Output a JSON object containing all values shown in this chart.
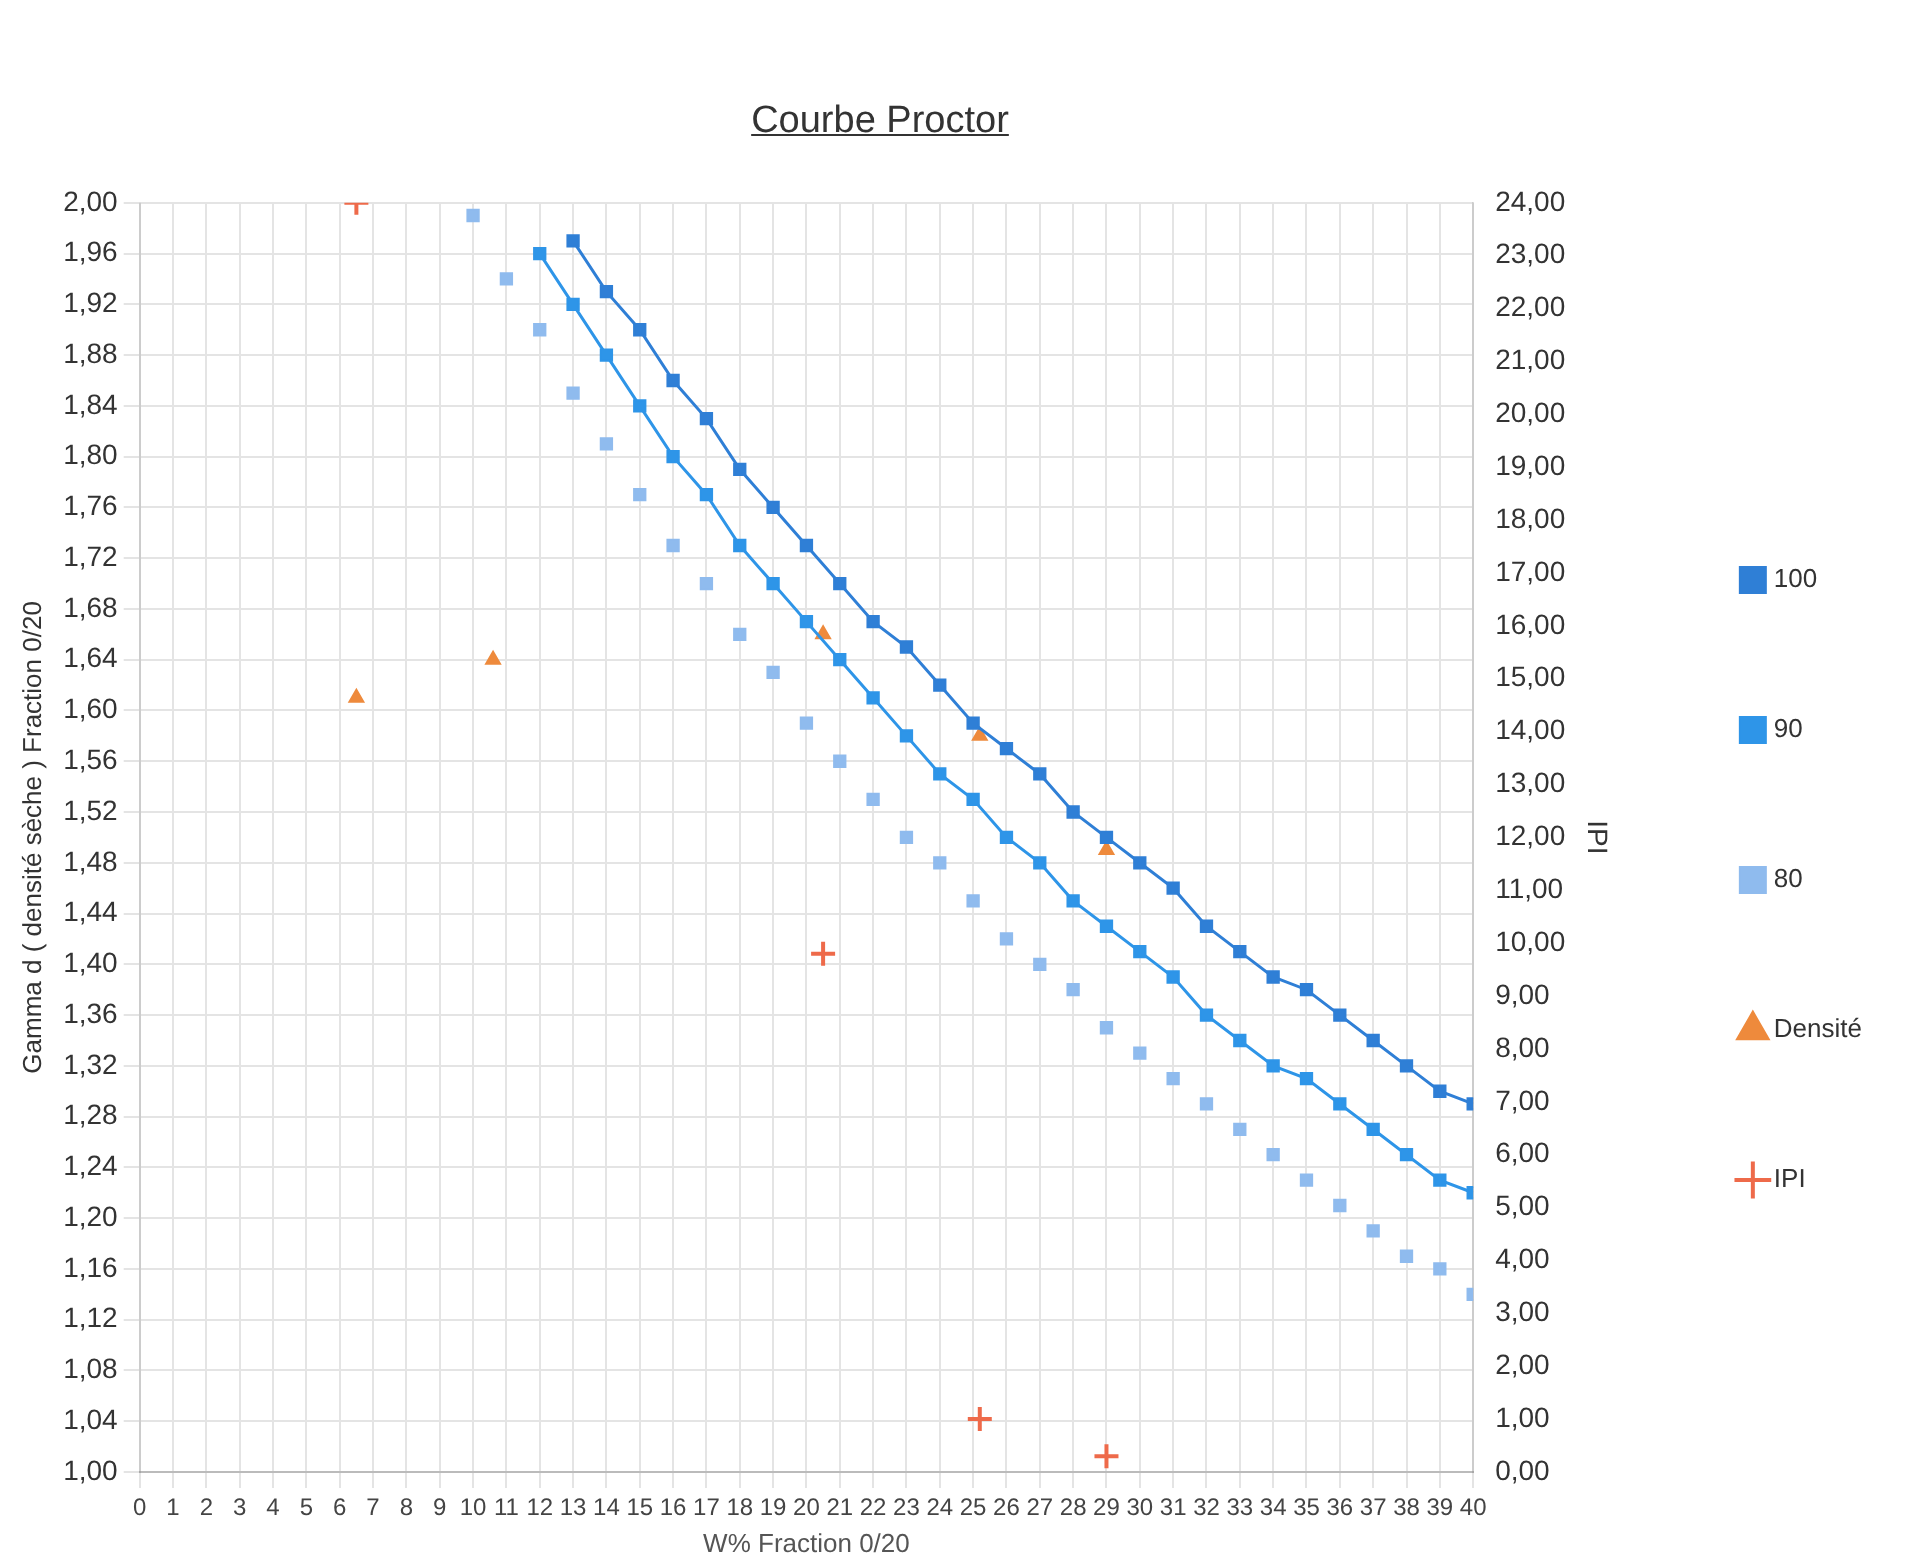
{
  "chart_data": {
    "type": "line",
    "title": "Courbe Proctor",
    "xlabel": "W% Fraction 0/20",
    "ylabel": "Gamma d ( densité sèche ) Fraction 0/20",
    "y2label": "IPI",
    "xlim": [
      0,
      40
    ],
    "xticks": [
      0,
      1,
      2,
      3,
      4,
      5,
      6,
      7,
      8,
      9,
      10,
      11,
      12,
      13,
      14,
      15,
      16,
      17,
      18,
      19,
      20,
      21,
      22,
      23,
      24,
      25,
      26,
      27,
      28,
      29,
      30,
      31,
      32,
      33,
      34,
      35,
      36,
      37,
      38,
      39,
      40
    ],
    "ylim": [
      1,
      2
    ],
    "yticks": [
      {
        "value": 1,
        "label": "1,00"
      },
      {
        "value": 1.04,
        "label": "1,04"
      },
      {
        "value": 1.08,
        "label": "1,08"
      },
      {
        "value": 1.12,
        "label": "1,12"
      },
      {
        "value": 1.16,
        "label": "1,16"
      },
      {
        "value": 1.2,
        "label": "1,20"
      },
      {
        "value": 1.24,
        "label": "1,24"
      },
      {
        "value": 1.28,
        "label": "1,28"
      },
      {
        "value": 1.32,
        "label": "1,32"
      },
      {
        "value": 1.36,
        "label": "1,36"
      },
      {
        "value": 1.4,
        "label": "1,40"
      },
      {
        "value": 1.44,
        "label": "1,44"
      },
      {
        "value": 1.48,
        "label": "1,48"
      },
      {
        "value": 1.52,
        "label": "1,52"
      },
      {
        "value": 1.56,
        "label": "1,56"
      },
      {
        "value": 1.6,
        "label": "1,60"
      },
      {
        "value": 1.64,
        "label": "1,64"
      },
      {
        "value": 1.68,
        "label": "1,68"
      },
      {
        "value": 1.72,
        "label": "1,72"
      },
      {
        "value": 1.76,
        "label": "1,76"
      },
      {
        "value": 1.8,
        "label": "1,80"
      },
      {
        "value": 1.84,
        "label": "1,84"
      },
      {
        "value": 1.88,
        "label": "1,88"
      },
      {
        "value": 1.92,
        "label": "1,92"
      },
      {
        "value": 1.96,
        "label": "1,96"
      },
      {
        "value": 2,
        "label": "2,00"
      }
    ],
    "y2lim": [
      0,
      24
    ],
    "y2ticks": [
      {
        "value": 0,
        "label": "0,00"
      },
      {
        "value": 1,
        "label": "1,00"
      },
      {
        "value": 2,
        "label": "2,00"
      },
      {
        "value": 3,
        "label": "3,00"
      },
      {
        "value": 4,
        "label": "4,00"
      },
      {
        "value": 5,
        "label": "5,00"
      },
      {
        "value": 6,
        "label": "6,00"
      },
      {
        "value": 7,
        "label": "7,00"
      },
      {
        "value": 8,
        "label": "8,00"
      },
      {
        "value": 9,
        "label": "9,00"
      },
      {
        "value": 10,
        "label": "10,00"
      },
      {
        "value": 11,
        "label": "11,00"
      },
      {
        "value": 12,
        "label": "12,00"
      },
      {
        "value": 13,
        "label": "13,00"
      },
      {
        "value": 14,
        "label": "14,00"
      },
      {
        "value": 15,
        "label": "15,00"
      },
      {
        "value": 16,
        "label": "16,00"
      },
      {
        "value": 17,
        "label": "17,00"
      },
      {
        "value": 18,
        "label": "18,00"
      },
      {
        "value": 19,
        "label": "19,00"
      },
      {
        "value": 20,
        "label": "20,00"
      },
      {
        "value": 21,
        "label": "21,00"
      },
      {
        "value": 22,
        "label": "22,00"
      },
      {
        "value": 23,
        "label": "23,00"
      },
      {
        "value": 24,
        "label": "24,00"
      }
    ],
    "grid": true,
    "legend": "right",
    "series": [
      {
        "name": "100",
        "type": "line",
        "marker": "square",
        "color": "#2f7fd6",
        "x": [
          13,
          14,
          15,
          16,
          17,
          18,
          19,
          20,
          21,
          22,
          23,
          24,
          25,
          26,
          27,
          28,
          29,
          30,
          31,
          32,
          33,
          34,
          35,
          36,
          37,
          38,
          39,
          40
        ],
        "values": [
          1.97,
          1.93,
          1.9,
          1.86,
          1.83,
          1.79,
          1.76,
          1.73,
          1.7,
          1.67,
          1.65,
          1.62,
          1.59,
          1.57,
          1.55,
          1.52,
          1.5,
          1.48,
          1.46,
          1.43,
          1.41,
          1.39,
          1.38,
          1.36,
          1.34,
          1.32,
          1.3,
          1.29
        ]
      },
      {
        "name": "90",
        "type": "line",
        "marker": "square",
        "color": "#2e95e8",
        "x": [
          12,
          13,
          14,
          15,
          16,
          17,
          18,
          19,
          20,
          21,
          22,
          23,
          24,
          25,
          26,
          27,
          28,
          29,
          30,
          31,
          32,
          33,
          34,
          35,
          36,
          37,
          38,
          39,
          40
        ],
        "values": [
          1.96,
          1.92,
          1.88,
          1.84,
          1.8,
          1.77,
          1.73,
          1.7,
          1.67,
          1.64,
          1.61,
          1.58,
          1.55,
          1.53,
          1.5,
          1.48,
          1.45,
          1.43,
          1.41,
          1.39,
          1.36,
          1.34,
          1.32,
          1.31,
          1.29,
          1.27,
          1.25,
          1.23,
          1.22
        ]
      },
      {
        "name": "80",
        "type": "scatter",
        "marker": "square",
        "color": "#8fbbee",
        "x": [
          10,
          11,
          12,
          13,
          14,
          15,
          16,
          17,
          18,
          19,
          20,
          21,
          22,
          23,
          24,
          25,
          26,
          27,
          28,
          29,
          30,
          31,
          32,
          33,
          34,
          35,
          36,
          37,
          38,
          39,
          40
        ],
        "values": [
          1.99,
          1.94,
          1.9,
          1.85,
          1.81,
          1.77,
          1.73,
          1.7,
          1.66,
          1.63,
          1.59,
          1.56,
          1.53,
          1.5,
          1.48,
          1.45,
          1.42,
          1.4,
          1.38,
          1.35,
          1.33,
          1.31,
          1.29,
          1.27,
          1.25,
          1.23,
          1.21,
          1.19,
          1.17,
          1.16,
          1.14
        ]
      },
      {
        "name": "Densité",
        "type": "scatter",
        "marker": "triangle",
        "color": "#ee8a3c",
        "x": [
          6.5,
          10.6,
          20.5,
          25.2,
          29
        ],
        "values": [
          1.61,
          1.64,
          1.66,
          1.58,
          1.49
        ]
      },
      {
        "name": "IPI",
        "type": "scatter",
        "marker": "cross",
        "axis": "y2",
        "color": "#ee6a4a",
        "x": [
          6.5,
          20.5,
          25.2,
          29
        ],
        "values": [
          24,
          9.8,
          1,
          0.3
        ]
      }
    ]
  }
}
